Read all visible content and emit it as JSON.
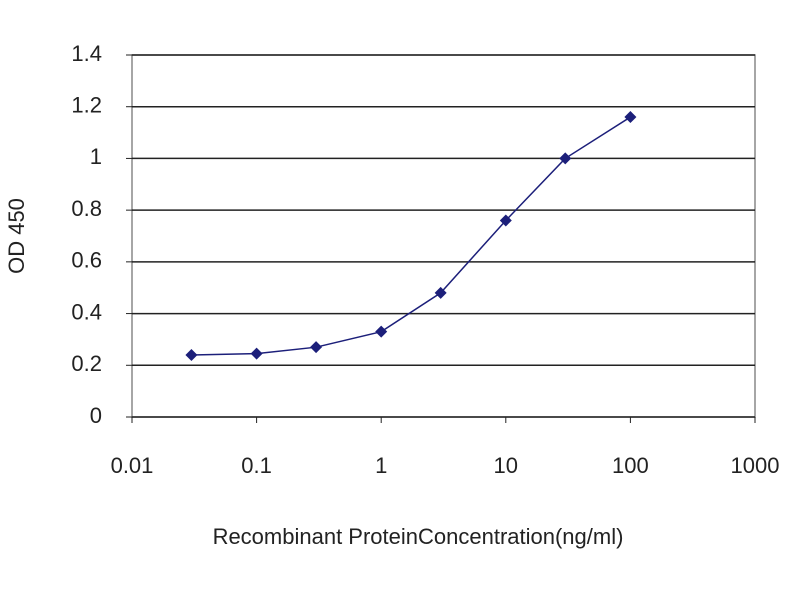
{
  "chart_data": {
    "type": "line",
    "x": [
      0.03,
      0.1,
      0.3,
      1,
      3,
      10,
      30,
      100
    ],
    "series": [
      {
        "color": "#1c1f7a",
        "values": [
          0.24,
          0.245,
          0.27,
          0.33,
          0.48,
          0.76,
          1.0,
          1.16
        ]
      }
    ],
    "xlabel": "Recombinant ProteinConcentration(ng/ml)",
    "ylabel": "OD 450",
    "xscale": "log",
    "xlim": [
      0.01,
      1000
    ],
    "xticks": [
      0.01,
      0.1,
      1,
      10,
      100,
      1000
    ],
    "ylim": [
      0,
      1.4
    ],
    "yticks": [
      0,
      0.2,
      0.4,
      0.6,
      0.8,
      1,
      1.2,
      1.4
    ],
    "grid": true
  }
}
